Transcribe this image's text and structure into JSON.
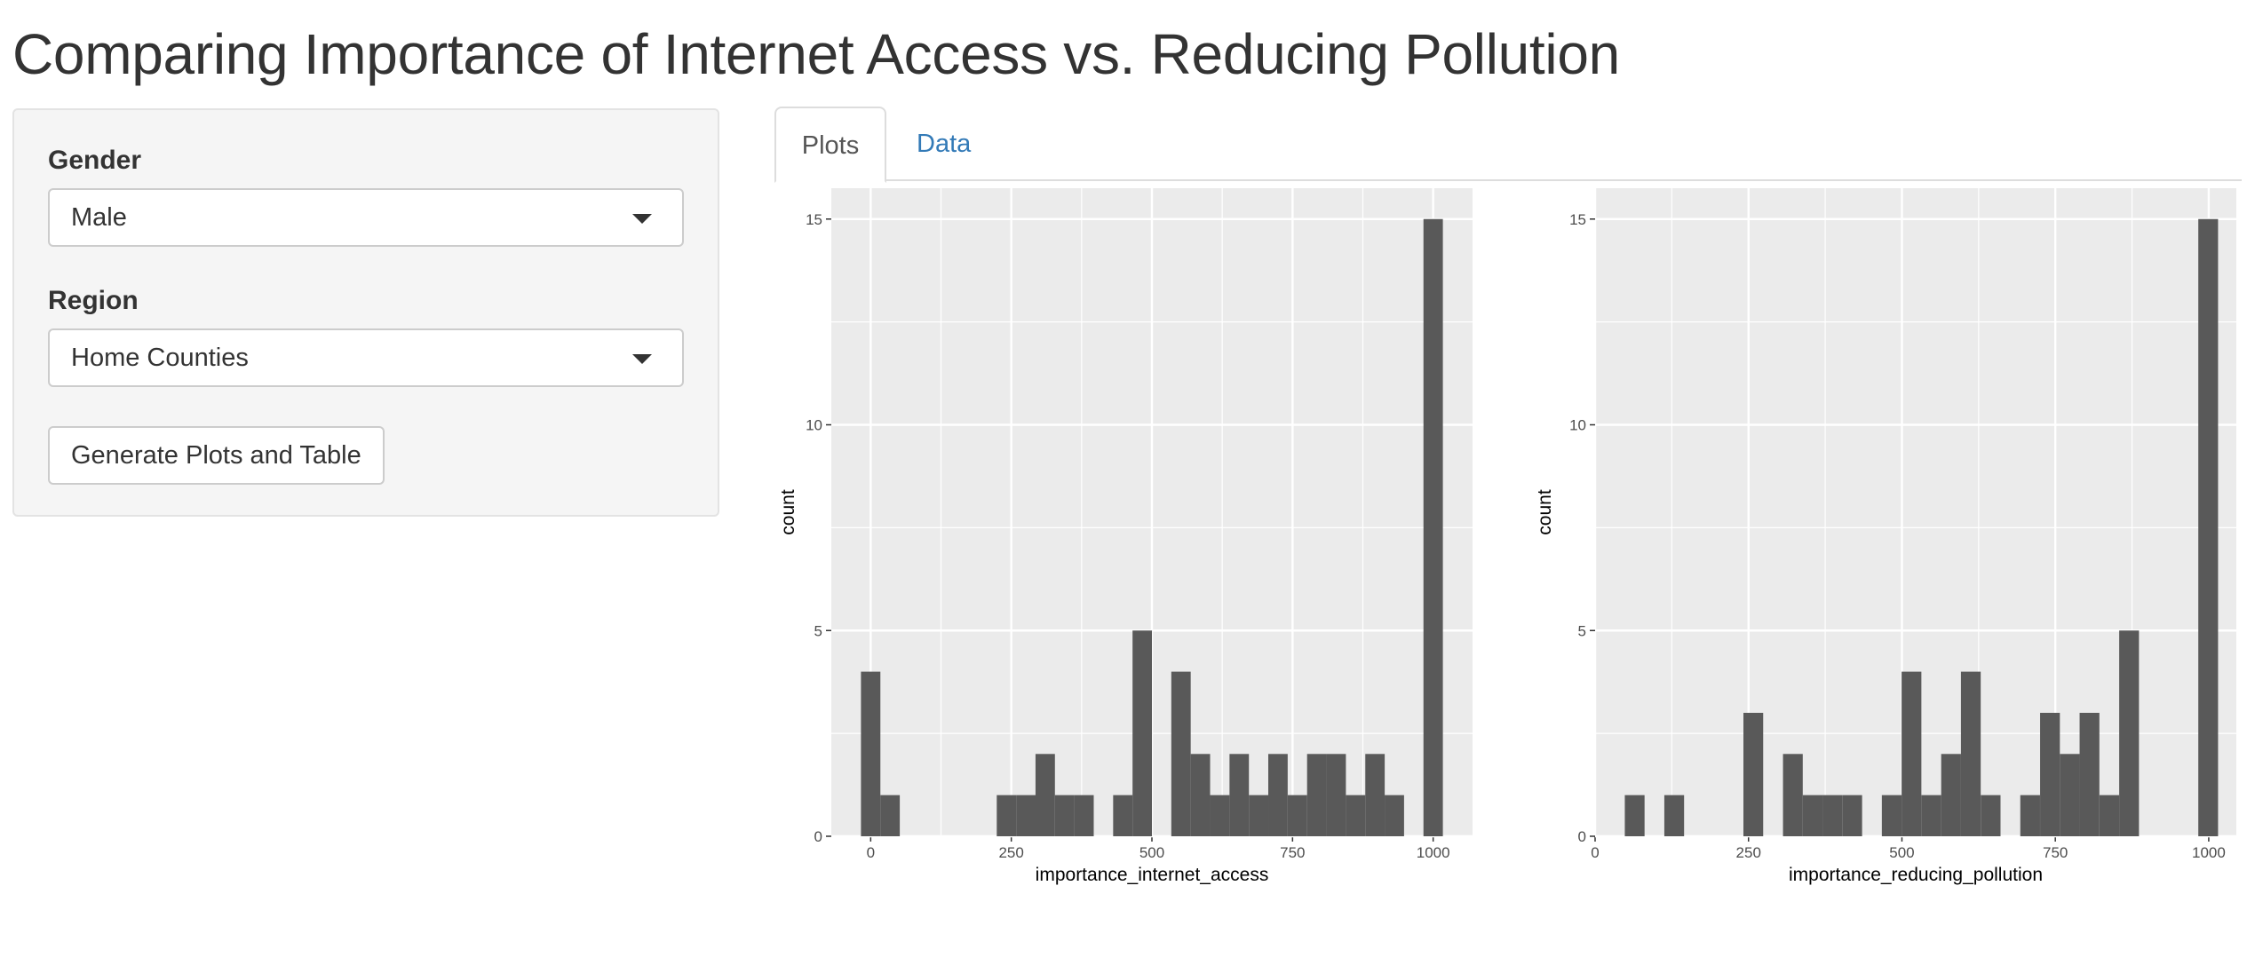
{
  "title": "Comparing Importance of Internet Access vs. Reducing Pollution",
  "sidebar": {
    "gender_label": "Gender",
    "gender_value": "Male",
    "region_label": "Region",
    "region_value": "Home Counties",
    "generate_label": "Generate Plots and Table"
  },
  "tabs": [
    {
      "label": "Plots",
      "active": true
    },
    {
      "label": "Data",
      "active": false
    }
  ],
  "colors": {
    "panel_bg": "#ebebeb",
    "bar": "#595959",
    "grid": "#ffffff",
    "link": "#337ab7"
  },
  "chart_data": [
    {
      "type": "bar",
      "subtype": "histogram",
      "xlabel": "importance_internet_access",
      "ylabel": "count",
      "xlim": [
        -70,
        1070
      ],
      "ylim": [
        0,
        15.75
      ],
      "x_ticks": [
        0,
        250,
        500,
        750,
        1000
      ],
      "y_ticks": [
        0,
        5,
        10,
        15
      ],
      "binwidth": 34.5,
      "bins": [
        {
          "x": 0,
          "count": 4
        },
        {
          "x": 34.5,
          "count": 1
        },
        {
          "x": 241.4,
          "count": 1
        },
        {
          "x": 275.9,
          "count": 1
        },
        {
          "x": 310.3,
          "count": 2
        },
        {
          "x": 344.8,
          "count": 1
        },
        {
          "x": 379.3,
          "count": 1
        },
        {
          "x": 448.3,
          "count": 1
        },
        {
          "x": 482.8,
          "count": 5
        },
        {
          "x": 551.7,
          "count": 4
        },
        {
          "x": 586.2,
          "count": 2
        },
        {
          "x": 620.7,
          "count": 1
        },
        {
          "x": 655.2,
          "count": 2
        },
        {
          "x": 689.7,
          "count": 1
        },
        {
          "x": 724.1,
          "count": 2
        },
        {
          "x": 758.6,
          "count": 1
        },
        {
          "x": 793.1,
          "count": 2
        },
        {
          "x": 827.6,
          "count": 2
        },
        {
          "x": 862.1,
          "count": 1
        },
        {
          "x": 896.6,
          "count": 2
        },
        {
          "x": 931.0,
          "count": 1
        },
        {
          "x": 1000,
          "count": 15
        }
      ],
      "grid": true
    },
    {
      "type": "bar",
      "subtype": "histogram",
      "xlabel": "importance_reducing_pollution",
      "ylabel": "count",
      "xlim": [
        0,
        1045
      ],
      "ylim": [
        0,
        15.75
      ],
      "x_ticks": [
        0,
        250,
        500,
        750,
        1000
      ],
      "y_ticks": [
        0,
        5,
        10,
        15
      ],
      "binwidth": 32.2,
      "bins": [
        {
          "x": 64.5,
          "count": 1
        },
        {
          "x": 128.9,
          "count": 1
        },
        {
          "x": 257.8,
          "count": 3
        },
        {
          "x": 322.3,
          "count": 2
        },
        {
          "x": 354.5,
          "count": 1
        },
        {
          "x": 386.7,
          "count": 1
        },
        {
          "x": 419.0,
          "count": 1
        },
        {
          "x": 483.4,
          "count": 1
        },
        {
          "x": 515.6,
          "count": 4
        },
        {
          "x": 547.9,
          "count": 1
        },
        {
          "x": 580.1,
          "count": 2
        },
        {
          "x": 612.3,
          "count": 4
        },
        {
          "x": 644.6,
          "count": 1
        },
        {
          "x": 709.0,
          "count": 1
        },
        {
          "x": 741.3,
          "count": 3
        },
        {
          "x": 773.5,
          "count": 2
        },
        {
          "x": 805.7,
          "count": 3
        },
        {
          "x": 838.0,
          "count": 1
        },
        {
          "x": 870.2,
          "count": 5
        },
        {
          "x": 999.1,
          "count": 15
        }
      ],
      "grid": true
    }
  ]
}
